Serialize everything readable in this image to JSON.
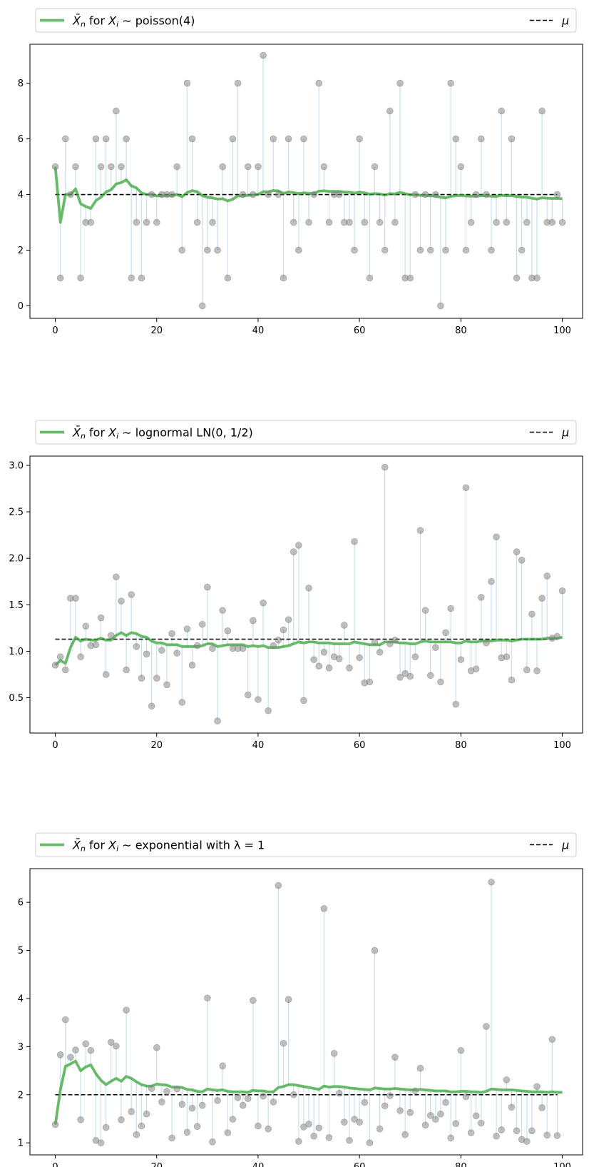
{
  "chart_data": [
    {
      "type": "scatter",
      "legend": {
        "series_label_prefix": "X̄",
        "series_label_sub": "n",
        "series_label_mid": " for X",
        "series_label_sub2": "i",
        "series_label_dist": " ∼ poisson(4)",
        "mean_label": "μ",
        "placement": "top",
        "series_color": "#2ca02c",
        "mean_color": "#000000"
      },
      "xlim": [
        -5,
        104
      ],
      "ylim": [
        -0.45,
        9.4
      ],
      "xticks": [
        0,
        20,
        40,
        60,
        80,
        100
      ],
      "yticks": [
        0,
        2,
        4,
        6,
        8
      ],
      "mu": 4,
      "samples": [
        5,
        1,
        6,
        4,
        5,
        1,
        3,
        3,
        6,
        5,
        6,
        5,
        7,
        5,
        6,
        1,
        3,
        1,
        3,
        4,
        3,
        4,
        4,
        4,
        5,
        2,
        8,
        6,
        3,
        0,
        2,
        3,
        2,
        5,
        1,
        6,
        8,
        4,
        5,
        4,
        5,
        9,
        4,
        6,
        4,
        1,
        6,
        3,
        2,
        6,
        3,
        4,
        8,
        5,
        3,
        4,
        4,
        3,
        3,
        2,
        6,
        3,
        1,
        5,
        3,
        2,
        7,
        3,
        8,
        1,
        1,
        4,
        2,
        4,
        2,
        4,
        0,
        2,
        8,
        6,
        5,
        2,
        3,
        4,
        6,
        4,
        2,
        3,
        7,
        3,
        6,
        1,
        2,
        3,
        1,
        1,
        7,
        3,
        3,
        4,
        3
      ],
      "running_mean": [
        5,
        3,
        4,
        4,
        4.2,
        3.67,
        3.57,
        3.5,
        3.78,
        3.9,
        4.09,
        4.17,
        4.38,
        4.43,
        4.53,
        4.31,
        4.24,
        4.06,
        4.0,
        4.0,
        3.95,
        3.95,
        3.96,
        3.96,
        4.0,
        3.92,
        4.07,
        4.14,
        4.1,
        3.96,
        3.9,
        3.88,
        3.84,
        3.85,
        3.77,
        3.83,
        3.95,
        3.95,
        3.97,
        3.98,
        4.0,
        4.1,
        4.1,
        4.14,
        4.13,
        4.04,
        4.09,
        4.07,
        4.03,
        4.06,
        4.04,
        4.04,
        4.12,
        4.13,
        4.11,
        4.11,
        4.11,
        4.09,
        4.08,
        4.05,
        4.08,
        4.06,
        4.01,
        4.03,
        4.02,
        3.98,
        4.03,
        4.02,
        4.08,
        4.03,
        3.99,
        3.99,
        3.97,
        3.97,
        3.95,
        3.95,
        3.9,
        3.88,
        3.93,
        3.96,
        3.97,
        3.95,
        3.94,
        3.94,
        3.96,
        3.96,
        3.94,
        3.93,
        3.97,
        3.96,
        3.96,
        3.93,
        3.91,
        3.9,
        3.87,
        3.84,
        3.88,
        3.87,
        3.86,
        3.86,
        3.85
      ]
    },
    {
      "type": "scatter",
      "legend": {
        "series_label_prefix": "X̄",
        "series_label_sub": "n",
        "series_label_mid": " for X",
        "series_label_sub2": "i",
        "series_label_dist": " ∼ lognormal LN(0, 1/2)",
        "mean_label": "μ",
        "placement": "top",
        "series_color": "#2ca02c",
        "mean_color": "#000000"
      },
      "xlim": [
        -5,
        104
      ],
      "ylim": [
        0.12,
        3.1
      ],
      "xticks": [
        0,
        20,
        40,
        60,
        80,
        100
      ],
      "yticks": [
        0.5,
        1.0,
        1.5,
        2.0,
        2.5,
        3.0
      ],
      "ytick_labels": [
        "0.5",
        "1.0",
        "1.5",
        "2.0",
        "2.5",
        "3.0"
      ],
      "mu": 1.13,
      "samples": [
        0.85,
        0.94,
        0.8,
        1.57,
        1.57,
        0.94,
        1.27,
        1.06,
        1.07,
        1.36,
        0.75,
        1.17,
        1.8,
        1.54,
        0.8,
        1.61,
        1.05,
        0.71,
        0.97,
        0.41,
        0.71,
        1.01,
        0.64,
        1.19,
        0.98,
        0.45,
        1.24,
        0.85,
        1.06,
        1.29,
        1.69,
        1.03,
        0.25,
        1.44,
        1.22,
        1.03,
        1.03,
        1.03,
        0.53,
        1.33,
        0.48,
        1.52,
        0.36,
        1.06,
        1.12,
        1.23,
        1.34,
        2.07,
        2.14,
        0.47,
        1.68,
        0.91,
        0.84,
        0.99,
        0.82,
        0.94,
        0.92,
        1.28,
        0.82,
        2.18,
        0.93,
        0.66,
        0.67,
        1.1,
        0.99,
        2.98,
        1.08,
        1.12,
        0.72,
        0.76,
        0.73,
        0.94,
        2.3,
        1.44,
        0.74,
        1.04,
        0.67,
        1.2,
        1.46,
        0.43,
        0.91,
        2.76,
        0.79,
        0.81,
        1.58,
        1.09,
        1.75,
        2.23,
        0.93,
        0.94,
        0.69,
        2.07,
        1.98,
        0.8,
        1.4,
        0.79,
        1.57,
        1.81,
        1.14,
        1.16,
        1.65
      ],
      "running_mean": [
        0.85,
        0.9,
        0.87,
        1.04,
        1.15,
        1.11,
        1.13,
        1.12,
        1.12,
        1.14,
        1.12,
        1.12,
        1.17,
        1.2,
        1.17,
        1.2,
        1.19,
        1.16,
        1.15,
        1.11,
        1.09,
        1.09,
        1.07,
        1.07,
        1.07,
        1.05,
        1.05,
        1.05,
        1.05,
        1.06,
        1.08,
        1.08,
        1.05,
        1.06,
        1.07,
        1.07,
        1.07,
        1.07,
        1.05,
        1.06,
        1.05,
        1.06,
        1.04,
        1.04,
        1.04,
        1.05,
        1.06,
        1.08,
        1.1,
        1.09,
        1.1,
        1.1,
        1.09,
        1.09,
        1.09,
        1.08,
        1.08,
        1.08,
        1.08,
        1.1,
        1.09,
        1.08,
        1.07,
        1.07,
        1.07,
        1.1,
        1.1,
        1.1,
        1.09,
        1.09,
        1.08,
        1.08,
        1.1,
        1.11,
        1.1,
        1.1,
        1.1,
        1.1,
        1.1,
        1.09,
        1.09,
        1.11,
        1.1,
        1.1,
        1.11,
        1.11,
        1.11,
        1.12,
        1.12,
        1.12,
        1.11,
        1.12,
        1.13,
        1.13,
        1.13,
        1.13,
        1.13,
        1.14,
        1.14,
        1.14,
        1.15
      ]
    },
    {
      "type": "scatter",
      "legend": {
        "series_label_prefix": "X̄",
        "series_label_sub": "n",
        "series_label_mid": " for X",
        "series_label_sub2": "i",
        "series_label_dist": " ∼ exponential with λ = 1",
        "mean_label": "μ",
        "placement": "top",
        "series_color": "#2ca02c",
        "mean_color": "#000000"
      },
      "xlim": [
        -5,
        104
      ],
      "ylim": [
        0.75,
        6.7
      ],
      "xticks": [
        0,
        20,
        40,
        60,
        80,
        100
      ],
      "yticks": [
        1,
        2,
        3,
        4,
        5,
        6
      ],
      "mu": 2.0,
      "samples": [
        1.38,
        2.83,
        3.56,
        2.78,
        2.93,
        1.48,
        3.06,
        2.92,
        1.05,
        1.0,
        1.32,
        3.09,
        3.01,
        1.48,
        3.76,
        1.65,
        1.17,
        1.35,
        1.6,
        2.13,
        2.98,
        1.85,
        2.07,
        1.1,
        2.12,
        1.8,
        1.22,
        1.72,
        1.34,
        1.78,
        4.01,
        1.02,
        1.88,
        2.6,
        1.21,
        1.49,
        1.94,
        1.78,
        1.92,
        3.96,
        1.35,
        1.97,
        1.29,
        1.85,
        6.35,
        3.07,
        3.98,
        2.0,
        1.03,
        1.33,
        1.39,
        1.14,
        1.31,
        5.87,
        1.11,
        2.86,
        2.03,
        1.43,
        1.05,
        1.49,
        1.43,
        1.84,
        1.0,
        5.0,
        1.29,
        1.77,
        1.98,
        2.78,
        1.67,
        1.17,
        1.63,
        2.08,
        2.55,
        1.37,
        1.57,
        1.49,
        1.6,
        1.84,
        1.1,
        1.4,
        2.92,
        1.96,
        1.21,
        1.56,
        1.41,
        3.42,
        6.42,
        1.14,
        1.27,
        2.31,
        1.74,
        1.25,
        1.07,
        1.03,
        1.25,
        2.17,
        1.73,
        1.16,
        3.15,
        1.15
      ],
      "running_mean": [
        1.38,
        2.1,
        2.59,
        2.64,
        2.7,
        2.5,
        2.58,
        2.62,
        2.44,
        2.3,
        2.21,
        2.28,
        2.34,
        2.28,
        2.38,
        2.34,
        2.27,
        2.21,
        2.18,
        2.18,
        2.22,
        2.21,
        2.2,
        2.16,
        2.16,
        2.15,
        2.11,
        2.1,
        2.07,
        2.06,
        2.12,
        2.1,
        2.09,
        2.1,
        2.07,
        2.06,
        2.06,
        2.06,
        2.05,
        2.09,
        2.08,
        2.08,
        2.06,
        2.06,
        2.15,
        2.17,
        2.21,
        2.21,
        2.19,
        2.17,
        2.15,
        2.13,
        2.11,
        2.18,
        2.16,
        2.17,
        2.17,
        2.16,
        2.14,
        2.13,
        2.12,
        2.11,
        2.1,
        2.14,
        2.13,
        2.12,
        2.12,
        2.13,
        2.12,
        2.11,
        2.1,
        2.1,
        2.11,
        2.1,
        2.09,
        2.08,
        2.08,
        2.08,
        2.06,
        2.06,
        2.07,
        2.07,
        2.06,
        2.06,
        2.05,
        2.07,
        2.12,
        2.11,
        2.1,
        2.1,
        2.1,
        2.09,
        2.08,
        2.07,
        2.06,
        2.06,
        2.06,
        2.05,
        2.06,
        2.05,
        2.05
      ]
    }
  ]
}
